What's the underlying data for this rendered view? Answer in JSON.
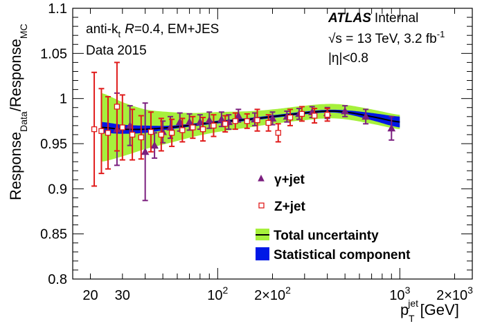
{
  "chart_data": {
    "type": "scatter",
    "title": "",
    "xlabel": "p_T^jet [GeV]",
    "ylabel": "Response_Data/Response_MC",
    "x_scale": "log",
    "xlim": [
      16,
      2500
    ],
    "ylim": [
      0.8,
      1.1
    ],
    "grid": false,
    "x_ticks": [
      {
        "value": 20,
        "label": "20"
      },
      {
        "value": 30,
        "label": "30"
      },
      {
        "value": 100,
        "label": "10",
        "sup": "2"
      },
      {
        "value": 200,
        "label": "2×10",
        "sup": "2"
      },
      {
        "value": 1000,
        "label": "10",
        "sup": "3"
      },
      {
        "value": 2000,
        "label": "2×10",
        "sup": "3"
      }
    ],
    "y_ticks": [
      {
        "value": 0.8,
        "label": "0.8"
      },
      {
        "value": 0.85,
        "label": "0.85"
      },
      {
        "value": 0.9,
        "label": "0.9"
      },
      {
        "value": 0.95,
        "label": "0.95"
      },
      {
        "value": 1.0,
        "label": "1"
      },
      {
        "value": 1.05,
        "label": "1.05"
      },
      {
        "value": 1.1,
        "label": "1.1"
      }
    ],
    "annotations": {
      "algorithm_prefix": "anti-k",
      "algorithm_sub": "t",
      "radius_symbol": "R",
      "algorithm_suffix": "=0.4, EM+JES",
      "dataset": "Data 2015",
      "experiment": "ATLAS",
      "status": "Internal",
      "energy_text": "√s = 13 TeV, 3.2 fb",
      "energy_sup": "-1",
      "eta_cut": "|η|<0.8"
    },
    "legend": {
      "placement": "bottom-right",
      "entries": [
        {
          "label": "γ+jet",
          "marker": "triangle",
          "color": "#7b1f7f"
        },
        {
          "label": "Z+jet",
          "marker": "open-square",
          "color": "#e01b1b"
        },
        {
          "label": "Total uncertainty",
          "marker": "band",
          "color": "#a6f03c"
        },
        {
          "label": "Statistical component",
          "marker": "band",
          "color": "#0018e6"
        }
      ]
    },
    "calibration": {
      "x": [
        23,
        30,
        40,
        55,
        75,
        100,
        150,
        200,
        300,
        400,
        500,
        700,
        1000
      ],
      "central": [
        0.968,
        0.966,
        0.966,
        0.968,
        0.971,
        0.974,
        0.977,
        0.98,
        0.984,
        0.986,
        0.985,
        0.98,
        0.974
      ],
      "total_unc": [
        0.038,
        0.03,
        0.022,
        0.017,
        0.013,
        0.011,
        0.009,
        0.008,
        0.008,
        0.008,
        0.008,
        0.008,
        0.008
      ],
      "stat_unc": [
        0.006,
        0.005,
        0.004,
        0.002,
        0.0015,
        0.0015,
        0.0015,
        0.0015,
        0.0015,
        0.0015,
        0.002,
        0.004,
        0.006
      ],
      "line_color": "#000000",
      "total_color": "#a6f03c",
      "stat_color": "#0018e6"
    },
    "series": [
      {
        "name": "γ+jet",
        "marker": "triangle",
        "color": "#7b1f7f",
        "x": [
          28,
          33,
          40,
          45,
          50,
          55,
          62,
          70,
          80,
          90,
          105,
          115,
          130,
          160,
          200,
          240,
          280,
          330,
          400,
          500,
          650,
          900
        ],
        "y": [
          0.966,
          0.97,
          0.941,
          0.948,
          0.963,
          0.968,
          0.974,
          0.974,
          0.974,
          0.976,
          0.977,
          0.974,
          0.981,
          0.977,
          0.978,
          0.98,
          0.983,
          0.985,
          0.984,
          0.986,
          0.98,
          0.967
        ],
        "err": [
          0.04,
          0.022,
          0.054,
          0.014,
          0.012,
          0.012,
          0.01,
          0.009,
          0.008,
          0.009,
          0.008,
          0.008,
          0.007,
          0.007,
          0.007,
          0.006,
          0.006,
          0.006,
          0.006,
          0.006,
          0.008,
          0.013
        ]
      },
      {
        "name": "Z+jet",
        "marker": "open-square",
        "color": "#e01b1b",
        "x": [
          21,
          23,
          25,
          28,
          30,
          34,
          38,
          43,
          49,
          56,
          64,
          73,
          83,
          95,
          110,
          125,
          145,
          165,
          190,
          215,
          250,
          290,
          340,
          400
        ],
        "y": [
          0.966,
          0.964,
          0.962,
          0.991,
          0.968,
          0.96,
          0.957,
          0.963,
          0.96,
          0.962,
          0.965,
          0.968,
          0.966,
          0.97,
          0.972,
          0.975,
          0.975,
          0.976,
          0.973,
          0.962,
          0.979,
          0.983,
          0.981,
          0.982
        ]
      }
    ]
  },
  "zplus_errors": [
    0.063,
    0.047,
    0.04,
    0.049,
    0.036,
    0.028,
    0.024,
    0.022,
    0.018,
    0.015,
    0.013,
    0.012,
    0.013,
    0.012,
    0.009,
    0.009,
    0.008,
    0.012,
    0.009,
    0.01,
    0.009,
    0.008,
    0.008,
    0.007
  ]
}
